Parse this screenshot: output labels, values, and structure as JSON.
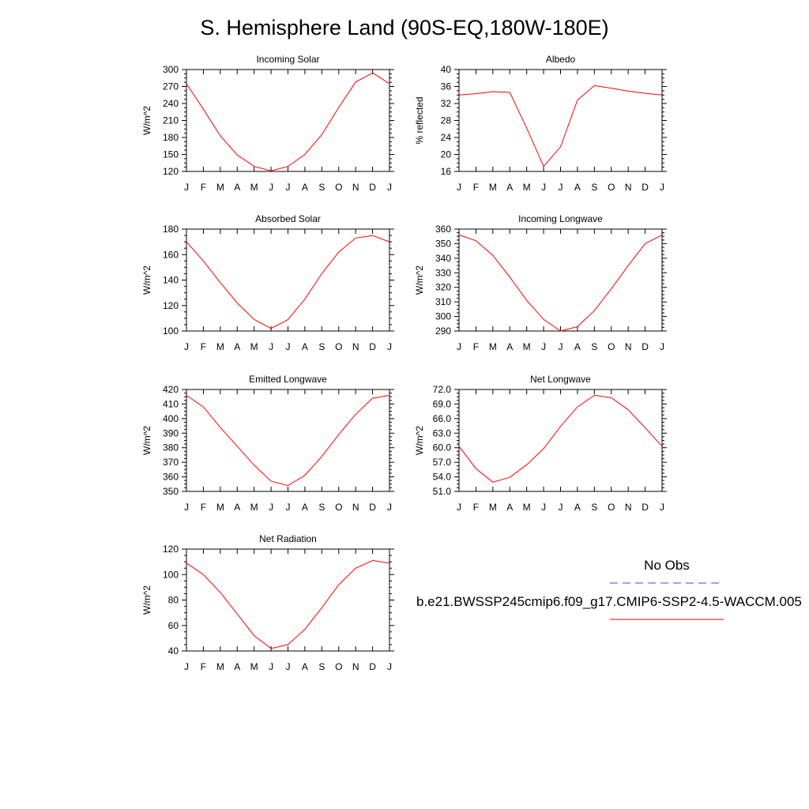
{
  "title": "S. Hemisphere Land (90S-EQ,180W-180E)",
  "legend": {
    "obs_label": "No Obs",
    "obs_color": "#4040ff",
    "model_label": "b.e21.BWSSP245cmip6.f09_g17.CMIP6-SSP2-4.5-WACCM.005",
    "model_color": "#ff0000"
  },
  "chart_data": [
    {
      "type": "line",
      "title": "Incoming Solar",
      "ylabel": "W/m^2",
      "categories": [
        "J",
        "F",
        "M",
        "A",
        "M",
        "J",
        "J",
        "A",
        "S",
        "O",
        "N",
        "D",
        "J"
      ],
      "ylim": [
        120,
        300
      ],
      "yticks": [
        "120",
        "150",
        "180",
        "210",
        "240",
        "270",
        "300"
      ],
      "series": [
        {
          "values": [
            275,
            230,
            183,
            149,
            129,
            121,
            129,
            150,
            185,
            233,
            278,
            294,
            275
          ]
        }
      ]
    },
    {
      "type": "line",
      "title": "Albedo",
      "ylabel": "% reflected",
      "categories": [
        "J",
        "F",
        "M",
        "A",
        "M",
        "J",
        "J",
        "A",
        "S",
        "O",
        "N",
        "D",
        "J"
      ],
      "ylim": [
        16,
        40
      ],
      "yticks": [
        "16",
        "20",
        "24",
        "28",
        "32",
        "36",
        "40"
      ],
      "series": [
        {
          "values": [
            34.0,
            34.3,
            34.8,
            34.6,
            26.2,
            17.2,
            21.8,
            32.8,
            36.2,
            35.6,
            34.9,
            34.4,
            34.0
          ]
        }
      ]
    },
    {
      "type": "line",
      "title": "Absorbed Solar",
      "ylabel": "W/m^2",
      "categories": [
        "J",
        "F",
        "M",
        "A",
        "M",
        "J",
        "J",
        "A",
        "S",
        "O",
        "N",
        "D",
        "J"
      ],
      "ylim": [
        100,
        180
      ],
      "yticks": [
        "100",
        "120",
        "140",
        "160",
        "180"
      ],
      "series": [
        {
          "values": [
            170,
            155,
            138,
            122,
            109,
            102,
            109,
            125,
            145,
            162,
            173,
            175,
            170
          ]
        }
      ]
    },
    {
      "type": "line",
      "title": "Incoming Longwave",
      "ylabel": "W/m^2",
      "categories": [
        "J",
        "F",
        "M",
        "A",
        "M",
        "J",
        "J",
        "A",
        "S",
        "O",
        "N",
        "D",
        "J"
      ],
      "ylim": [
        290,
        360
      ],
      "yticks": [
        "290",
        "300",
        "310",
        "320",
        "330",
        "340",
        "350",
        "360"
      ],
      "series": [
        {
          "values": [
            356,
            352,
            342,
            327,
            311,
            298,
            290,
            293,
            304,
            319,
            335,
            350,
            356
          ]
        }
      ]
    },
    {
      "type": "line",
      "title": "Emitted Longwave",
      "ylabel": "W/m^2",
      "categories": [
        "J",
        "F",
        "M",
        "A",
        "M",
        "J",
        "J",
        "A",
        "S",
        "O",
        "N",
        "D",
        "J"
      ],
      "ylim": [
        350,
        420
      ],
      "yticks": [
        "350",
        "360",
        "370",
        "380",
        "390",
        "400",
        "410",
        "420"
      ],
      "series": [
        {
          "values": [
            416,
            408,
            394,
            381,
            368,
            357,
            354,
            361,
            374,
            389,
            403,
            414,
            416
          ]
        }
      ]
    },
    {
      "type": "line",
      "title": "Net Longwave",
      "ylabel": "W/m^2",
      "categories": [
        "J",
        "F",
        "M",
        "A",
        "M",
        "J",
        "J",
        "A",
        "S",
        "O",
        "N",
        "D",
        "J"
      ],
      "ylim": [
        51,
        72
      ],
      "yticks": [
        "51.0",
        "54.0",
        "57.0",
        "60.0",
        "63.0",
        "66.0",
        "69.0",
        "72.0"
      ],
      "series": [
        {
          "values": [
            60.3,
            55.7,
            52.9,
            53.9,
            56.5,
            59.8,
            64.4,
            68.4,
            70.8,
            70.3,
            67.8,
            64.1,
            60.3
          ]
        }
      ]
    },
    {
      "type": "line",
      "title": "Net Radiation",
      "ylabel": "W/m^2",
      "categories": [
        "J",
        "F",
        "M",
        "A",
        "M",
        "J",
        "J",
        "A",
        "S",
        "O",
        "N",
        "D",
        "J"
      ],
      "ylim": [
        40,
        120
      ],
      "yticks": [
        "40",
        "60",
        "80",
        "100",
        "120"
      ],
      "series": [
        {
          "values": [
            109,
            100,
            86,
            69,
            52,
            42,
            45,
            57,
            74,
            92,
            105,
            111,
            109
          ]
        }
      ]
    }
  ]
}
